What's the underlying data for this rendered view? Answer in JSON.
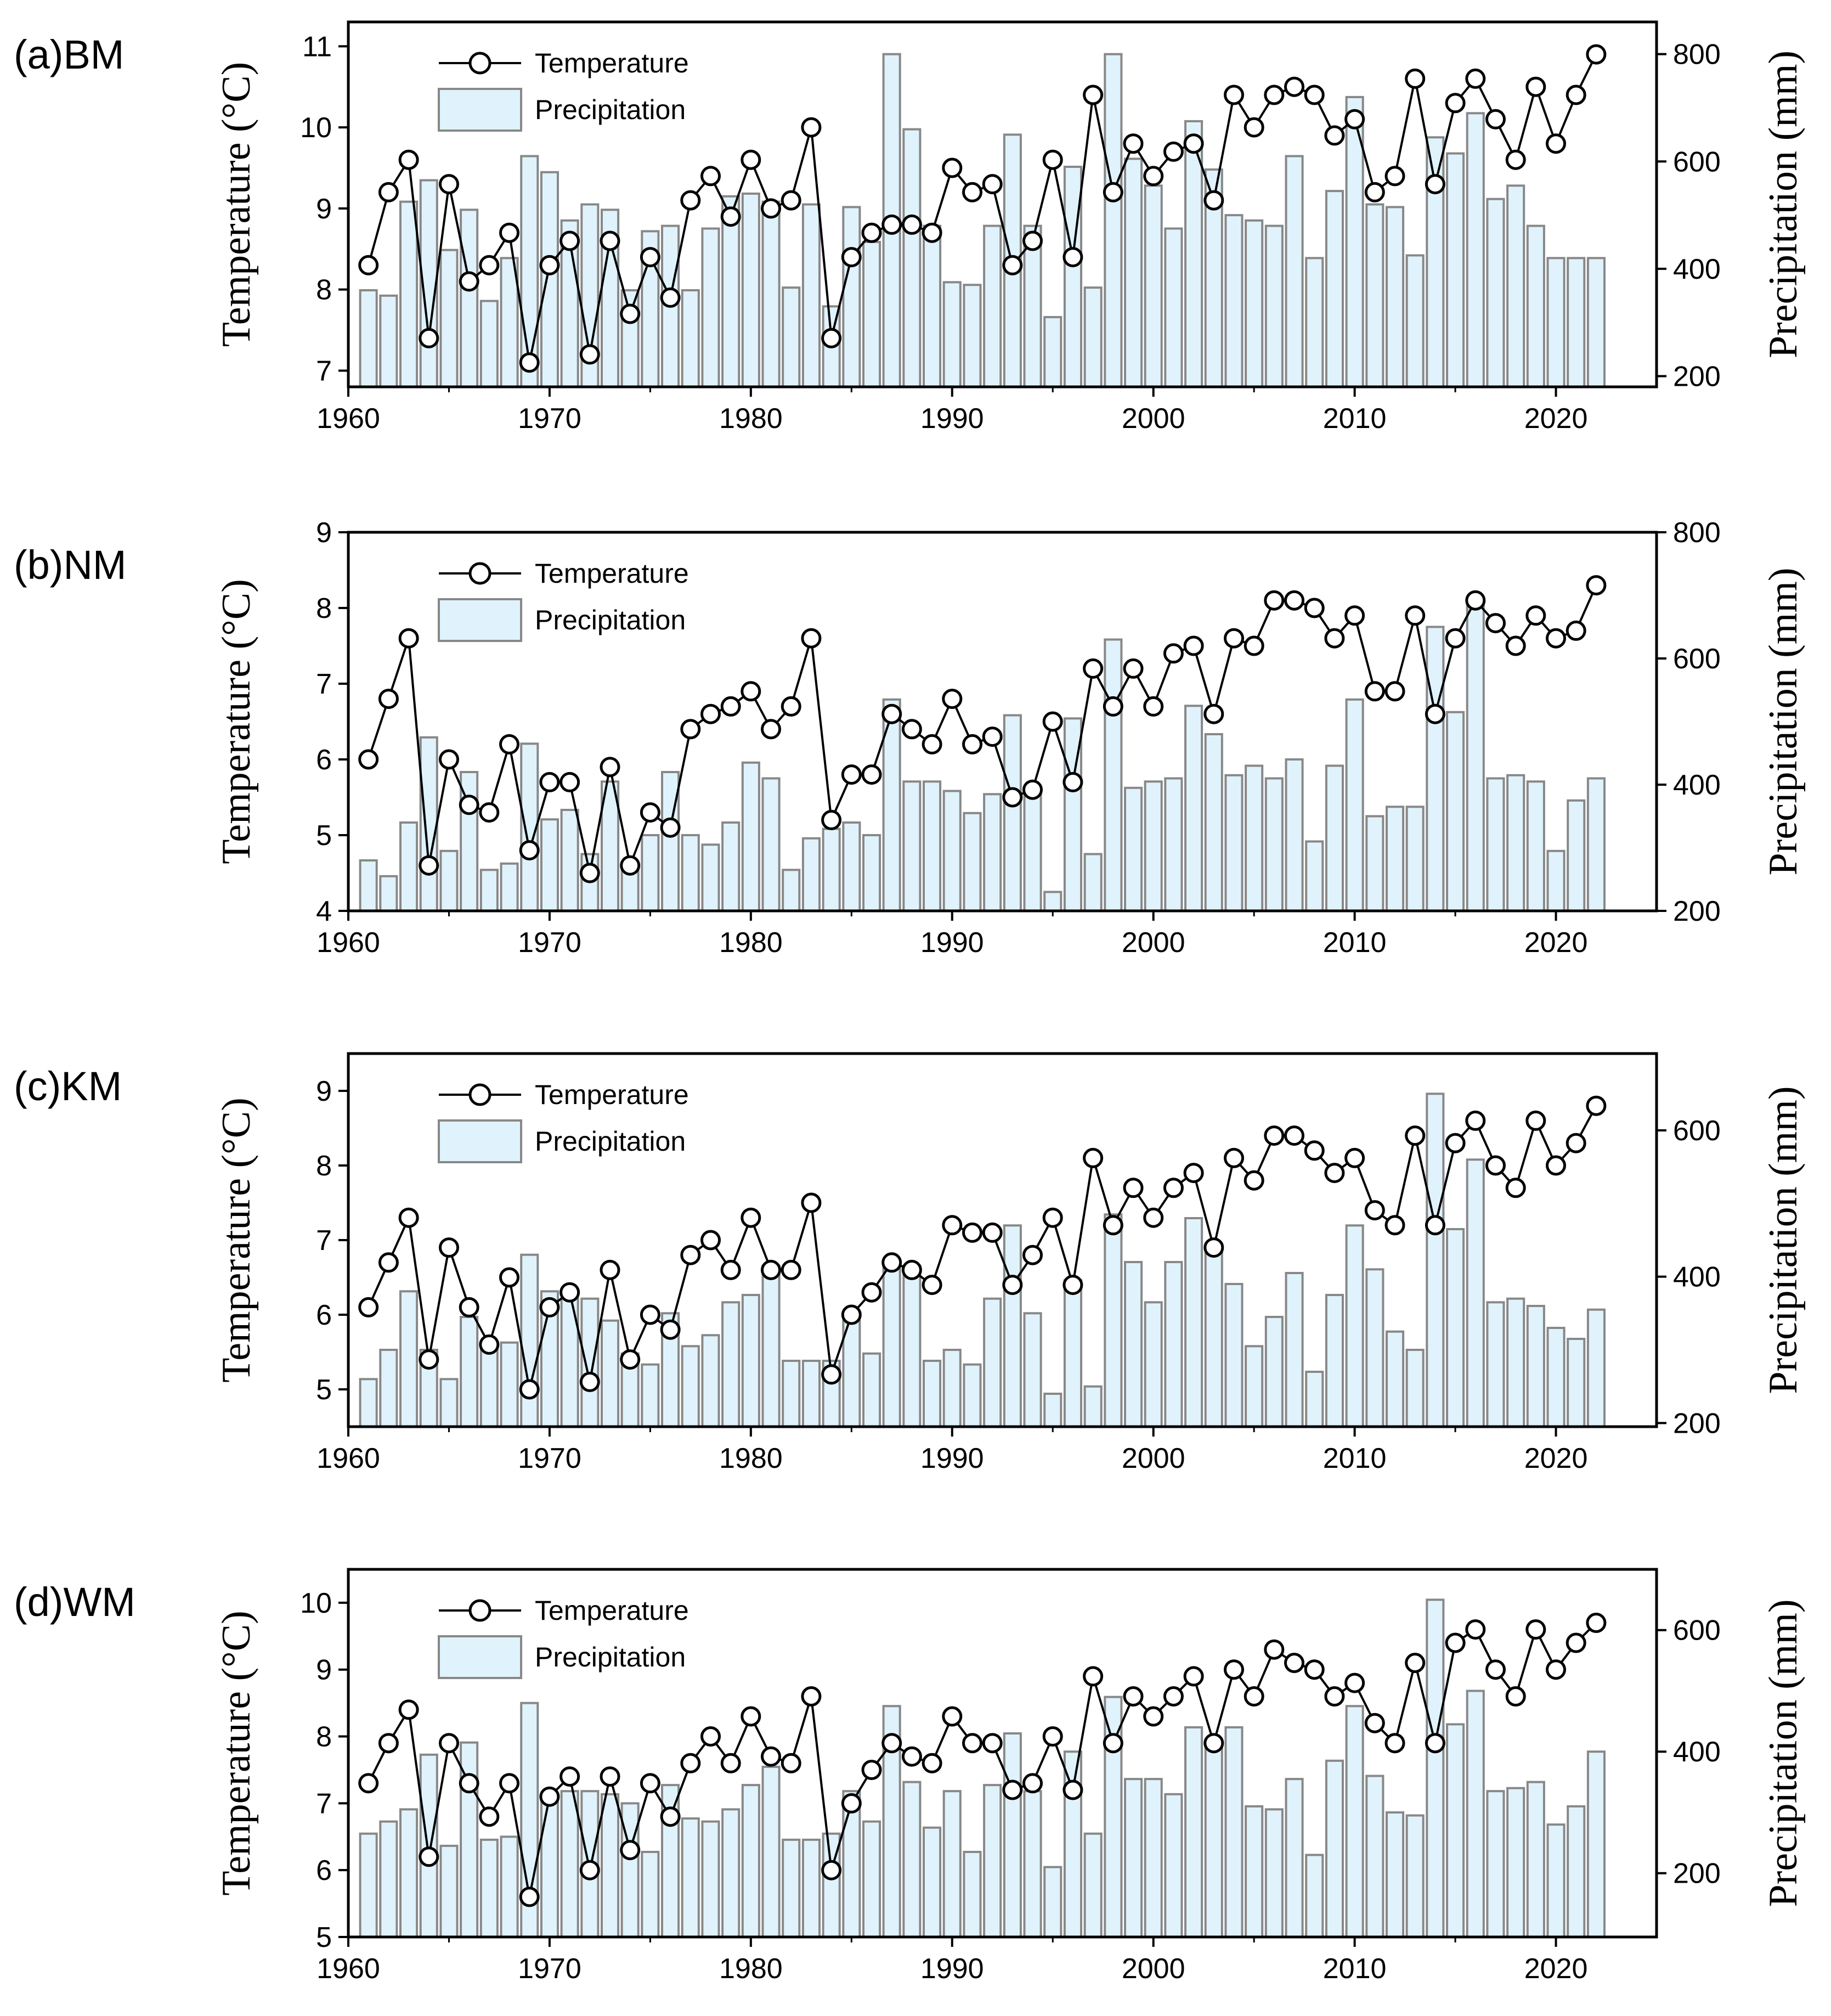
{
  "chart_data": [
    {
      "type": "bar+line",
      "panel_label": "(a)BM",
      "ylabel_left": "Temperature (°C)",
      "ylabel_right": "Precipitation (mm)",
      "xlim": [
        1960,
        2025
      ],
      "xticks": [
        1960,
        1970,
        1980,
        1990,
        2000,
        2010,
        2020
      ],
      "ylim_left": [
        6.8,
        11.3
      ],
      "yticks_left": [
        7,
        8,
        9,
        10,
        11
      ],
      "ylim_right": [
        180,
        860
      ],
      "yticks_right": [
        200,
        400,
        600,
        800
      ],
      "legend": [
        "Temperature",
        "Precipitation"
      ],
      "years": [
        1961,
        1962,
        1963,
        1964,
        1965,
        1966,
        1967,
        1968,
        1969,
        1970,
        1971,
        1972,
        1973,
        1974,
        1975,
        1976,
        1977,
        1978,
        1979,
        1980,
        1981,
        1982,
        1983,
        1984,
        1985,
        1986,
        1987,
        1988,
        1989,
        1990,
        1991,
        1992,
        1993,
        1994,
        1995,
        1996,
        1997,
        1998,
        1999,
        2000,
        2001,
        2002,
        2003,
        2004,
        2005,
        2006,
        2007,
        2008,
        2009,
        2010,
        2011,
        2012,
        2013,
        2014,
        2015,
        2016,
        2017,
        2018,
        2019,
        2020,
        2021,
        2022
      ],
      "temperature": [
        8.3,
        9.2,
        9.6,
        7.4,
        9.3,
        8.1,
        8.3,
        8.7,
        7.1,
        8.3,
        8.6,
        7.2,
        8.6,
        7.7,
        8.4,
        7.9,
        9.1,
        9.4,
        8.9,
        9.6,
        9.0,
        9.1,
        10.0,
        7.4,
        8.4,
        8.7,
        8.8,
        8.8,
        8.7,
        9.5,
        9.2,
        9.3,
        8.3,
        8.6,
        9.6,
        8.4,
        10.4,
        9.2,
        9.8,
        9.4,
        9.7,
        9.8,
        9.1,
        10.4,
        10.0,
        10.4,
        10.5,
        10.4,
        9.9,
        10.1,
        9.2,
        9.4,
        10.6,
        9.3,
        10.3,
        10.6,
        10.1,
        9.6,
        10.5,
        9.8,
        10.4,
        10.9
      ],
      "precipitation": [
        360,
        350,
        525,
        565,
        435,
        510,
        340,
        420,
        610,
        580,
        490,
        520,
        510,
        360,
        470,
        480,
        360,
        475,
        535,
        540,
        525,
        365,
        520,
        330,
        515,
        450,
        800,
        660,
        480,
        375,
        370,
        480,
        650,
        480,
        310,
        590,
        365,
        800,
        605,
        555,
        475,
        675,
        585,
        500,
        490,
        480,
        610,
        420,
        545,
        720,
        520,
        515,
        425,
        645,
        615,
        690,
        530,
        555,
        480,
        420,
        420,
        420
      ]
    },
    {
      "type": "bar+line",
      "panel_label": "(b)NM",
      "ylabel_left": "Temperature (°C)",
      "ylabel_right": "Precipitation (mm)",
      "xlim": [
        1960,
        2025
      ],
      "xticks": [
        1960,
        1970,
        1980,
        1990,
        2000,
        2010,
        2020
      ],
      "ylim_left": [
        4,
        9
      ],
      "yticks_left": [
        4,
        5,
        6,
        7,
        8,
        9
      ],
      "ylim_right": [
        200,
        800
      ],
      "yticks_right": [
        200,
        400,
        600,
        800
      ],
      "legend": [
        "Temperature",
        "Precipitation"
      ],
      "years": [
        1961,
        1962,
        1963,
        1964,
        1965,
        1966,
        1967,
        1968,
        1969,
        1970,
        1971,
        1972,
        1973,
        1974,
        1975,
        1976,
        1977,
        1978,
        1979,
        1980,
        1981,
        1982,
        1983,
        1984,
        1985,
        1986,
        1987,
        1988,
        1989,
        1990,
        1991,
        1992,
        1993,
        1994,
        1995,
        1996,
        1997,
        1998,
        1999,
        2000,
        2001,
        2002,
        2003,
        2004,
        2005,
        2006,
        2007,
        2008,
        2009,
        2010,
        2011,
        2012,
        2013,
        2014,
        2015,
        2016,
        2017,
        2018,
        2019,
        2020,
        2021,
        2022
      ],
      "temperature": [
        6.0,
        6.8,
        7.6,
        4.6,
        6.0,
        5.4,
        5.3,
        6.2,
        4.8,
        5.7,
        5.7,
        4.5,
        5.9,
        4.6,
        5.3,
        5.1,
        6.4,
        6.6,
        6.7,
        6.9,
        6.4,
        6.7,
        7.6,
        5.2,
        5.8,
        5.8,
        6.6,
        6.4,
        6.2,
        6.8,
        6.2,
        6.3,
        5.5,
        5.6,
        6.5,
        5.7,
        7.2,
        6.7,
        7.2,
        6.7,
        7.4,
        7.5,
        6.6,
        7.6,
        7.5,
        8.1,
        8.1,
        8.0,
        7.6,
        7.9,
        6.9,
        6.9,
        7.9,
        6.6,
        7.6,
        8.1,
        7.8,
        7.5,
        7.9,
        7.6,
        7.7,
        8.3
      ],
      "precipitation": [
        280,
        255,
        340,
        475,
        295,
        420,
        265,
        275,
        465,
        345,
        360,
        290,
        405,
        265,
        320,
        420,
        320,
        305,
        340,
        435,
        410,
        265,
        315,
        330,
        340,
        320,
        535,
        405,
        405,
        390,
        355,
        385,
        510,
        385,
        230,
        505,
        290,
        630,
        395,
        405,
        410,
        525,
        480,
        415,
        430,
        410,
        440,
        310,
        430,
        535,
        350,
        365,
        365,
        650,
        515,
        690,
        410,
        415,
        405,
        295,
        375,
        410
      ]
    },
    {
      "type": "bar+line",
      "panel_label": "(c)KM",
      "ylabel_left": "Temperature (°C)",
      "ylabel_right": "Precipitation (mm)",
      "xlim": [
        1960,
        2025
      ],
      "xticks": [
        1960,
        1970,
        1980,
        1990,
        2000,
        2010,
        2020
      ],
      "ylim_left": [
        4.5,
        9.5
      ],
      "yticks_left": [
        5,
        6,
        7,
        8,
        9
      ],
      "ylim_right": [
        195,
        705
      ],
      "yticks_right": [
        200,
        400,
        600
      ],
      "legend": [
        "Temperature",
        "Precipitation"
      ],
      "years": [
        1961,
        1962,
        1963,
        1964,
        1965,
        1966,
        1967,
        1968,
        1969,
        1970,
        1971,
        1972,
        1973,
        1974,
        1975,
        1976,
        1977,
        1978,
        1979,
        1980,
        1981,
        1982,
        1983,
        1984,
        1985,
        1986,
        1987,
        1988,
        1989,
        1990,
        1991,
        1992,
        1993,
        1994,
        1995,
        1996,
        1997,
        1998,
        1999,
        2000,
        2001,
        2002,
        2003,
        2004,
        2005,
        2006,
        2007,
        2008,
        2009,
        2010,
        2011,
        2012,
        2013,
        2014,
        2015,
        2016,
        2017,
        2018,
        2019,
        2020,
        2021,
        2022
      ],
      "temperature": [
        6.1,
        6.7,
        7.3,
        5.4,
        6.9,
        6.1,
        5.6,
        6.5,
        5.0,
        6.1,
        6.3,
        5.1,
        6.6,
        5.4,
        6.0,
        5.8,
        6.8,
        7.0,
        6.6,
        7.3,
        6.6,
        6.6,
        7.5,
        5.2,
        6.0,
        6.3,
        6.7,
        6.6,
        6.4,
        7.2,
        7.1,
        7.1,
        6.4,
        6.8,
        7.3,
        6.4,
        8.1,
        7.2,
        7.7,
        7.3,
        7.7,
        7.9,
        6.9,
        8.1,
        7.8,
        8.4,
        8.4,
        8.2,
        7.9,
        8.1,
        7.4,
        7.2,
        8.4,
        7.2,
        8.3,
        8.6,
        8.0,
        7.7,
        8.6,
        8.0,
        8.3,
        8.8
      ],
      "precipitation": [
        260,
        300,
        380,
        300,
        260,
        345,
        310,
        310,
        430,
        380,
        370,
        370,
        340,
        295,
        280,
        350,
        305,
        320,
        365,
        375,
        415,
        285,
        285,
        285,
        340,
        295,
        415,
        415,
        285,
        300,
        280,
        370,
        470,
        350,
        240,
        395,
        250,
        485,
        420,
        365,
        420,
        480,
        445,
        390,
        305,
        345,
        405,
        270,
        375,
        470,
        410,
        325,
        300,
        650,
        465,
        560,
        365,
        370,
        360,
        330,
        315,
        355
      ]
    },
    {
      "type": "bar+line",
      "panel_label": "(d)WM",
      "ylabel_left": "Temperature (°C)",
      "ylabel_right": "Precipitation (mm)",
      "xlim": [
        1960,
        2025
      ],
      "xticks": [
        1960,
        1970,
        1980,
        1990,
        2000,
        2010,
        2020
      ],
      "ylim_left": [
        5,
        10.5
      ],
      "yticks_left": [
        5,
        6,
        7,
        8,
        9,
        10
      ],
      "ylim_right": [
        95,
        700
      ],
      "yticks_right": [
        200,
        400,
        600
      ],
      "legend": [
        "Temperature",
        "Precipitation"
      ],
      "years": [
        1961,
        1962,
        1963,
        1964,
        1965,
        1966,
        1967,
        1968,
        1969,
        1970,
        1971,
        1972,
        1973,
        1974,
        1975,
        1976,
        1977,
        1978,
        1979,
        1980,
        1981,
        1982,
        1983,
        1984,
        1985,
        1986,
        1987,
        1988,
        1989,
        1990,
        1991,
        1992,
        1993,
        1994,
        1995,
        1996,
        1997,
        1998,
        1999,
        2000,
        2001,
        2002,
        2003,
        2004,
        2005,
        2006,
        2007,
        2008,
        2009,
        2010,
        2011,
        2012,
        2013,
        2014,
        2015,
        2016,
        2017,
        2018,
        2019,
        2020,
        2021,
        2022
      ],
      "temperature": [
        7.3,
        7.9,
        8.4,
        6.2,
        7.9,
        7.3,
        6.8,
        7.3,
        5.6,
        7.1,
        7.4,
        6.0,
        7.4,
        6.3,
        7.3,
        6.8,
        7.6,
        8.0,
        7.6,
        8.3,
        7.7,
        7.6,
        8.6,
        6.0,
        7.0,
        7.5,
        7.9,
        7.7,
        7.6,
        8.3,
        7.9,
        7.9,
        7.2,
        7.3,
        8.0,
        7.2,
        8.9,
        7.9,
        8.6,
        8.3,
        8.6,
        8.9,
        7.9,
        9.0,
        8.6,
        9.3,
        9.1,
        9.0,
        8.6,
        8.8,
        8.2,
        7.9,
        9.1,
        7.9,
        9.4,
        9.6,
        9.0,
        8.6,
        9.6,
        9.0,
        9.4,
        9.7
      ],
      "precipitation": [
        265,
        285,
        305,
        395,
        245,
        415,
        255,
        260,
        480,
        325,
        335,
        335,
        330,
        315,
        235,
        345,
        290,
        285,
        305,
        345,
        375,
        255,
        255,
        265,
        335,
        285,
        475,
        350,
        275,
        335,
        235,
        345,
        430,
        335,
        210,
        400,
        265,
        490,
        355,
        355,
        330,
        440,
        420,
        440,
        310,
        305,
        355,
        230,
        385,
        475,
        360,
        300,
        295,
        650,
        445,
        500,
        335,
        340,
        350,
        280,
        310,
        400
      ]
    }
  ]
}
